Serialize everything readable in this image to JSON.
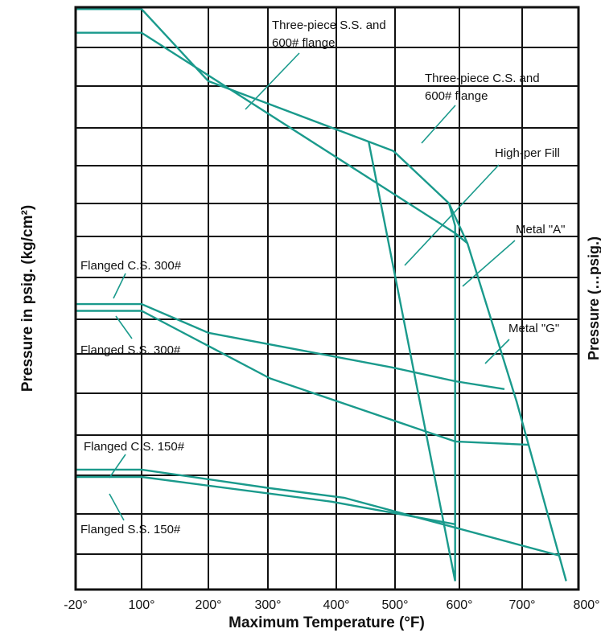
{
  "chart_data": {
    "type": "line",
    "xlabel": "Maximum Temperature (°F)",
    "ylabel": "Pressure in psig. (kg/cm²)",
    "right_axis_partial_label": "Pressure (…psig.)",
    "xlim": [
      -20,
      800
    ],
    "x_ticks": [
      "-20°",
      "100°",
      "200°",
      "300°",
      "400°",
      "500°",
      "600°",
      "700°",
      "800°"
    ],
    "y_ticks": [],
    "grid": true,
    "legend": "none — series identified by annotation labels with leader lines",
    "series": [
      {
        "name": "Three-piece S.S. and 600# flange",
        "points": [
          [
            -20,
            98.9
          ],
          [
            100,
            98.9
          ],
          [
            600,
            63.3
          ],
          [
            620,
            61.5
          ]
        ]
      },
      {
        "name": "Three-piece C.S. and 600# flange",
        "points": [
          [
            -20,
            103.1
          ],
          [
            100,
            103.1
          ],
          [
            200,
            90.3
          ],
          [
            500,
            77.9
          ],
          [
            590,
            68.6
          ]
        ]
      },
      {
        "name": "High-per Fill",
        "points": [
          [
            460,
            79.5
          ],
          [
            600,
            1.5
          ]
        ]
      },
      {
        "name": "Metal \"A\"",
        "points": [
          [
            590,
            68.6
          ],
          [
            600,
            64.6
          ],
          [
            600,
            1.5
          ]
        ]
      },
      {
        "name": "Metal \"G\"",
        "points": [
          [
            590,
            68.6
          ],
          [
            620,
            61.5
          ],
          [
            700,
            33.3
          ],
          [
            780,
            1.5
          ]
        ]
      },
      {
        "name": "Flanged C.S. 300#",
        "points": [
          [
            -20,
            50.7
          ],
          [
            100,
            50.7
          ],
          [
            200,
            45.6
          ],
          [
            500,
            39.4
          ],
          [
            600,
            37.0
          ],
          [
            680,
            35.6
          ]
        ]
      },
      {
        "name": "Flanged S.S. 300#",
        "points": [
          [
            -20,
            49.5
          ],
          [
            100,
            49.5
          ],
          [
            300,
            37.5
          ],
          [
            600,
            26.3
          ],
          [
            720,
            25.7
          ]
        ]
      },
      {
        "name": "Flanged C.S. 150#",
        "points": [
          [
            -20,
            21.3
          ],
          [
            100,
            21.3
          ],
          [
            300,
            18.0
          ],
          [
            420,
            16.3
          ],
          [
            770,
            6.0
          ]
        ]
      },
      {
        "name": "Flanged S.S. 150#",
        "points": [
          [
            -20,
            20.0
          ],
          [
            100,
            20.0
          ],
          [
            400,
            15.6
          ],
          [
            600,
            11.6
          ]
        ]
      }
    ],
    "annotations": [
      {
        "lines": [
          "Three-piece S.S. and",
          "600# flange"
        ]
      },
      {
        "lines": [
          "Three-piece C.S. and",
          "600# flange"
        ]
      },
      {
        "lines": [
          "High-per Fill"
        ]
      },
      {
        "lines": [
          "Metal \"A\""
        ]
      },
      {
        "lines": [
          "Metal \"G\""
        ]
      },
      {
        "lines": [
          "Flanged C.S. 300#"
        ]
      },
      {
        "lines": [
          "Flanged S.S. 300#"
        ]
      },
      {
        "lines": [
          "Flanged C.S. 150#"
        ]
      },
      {
        "lines": [
          "Flanged S.S. 150#"
        ]
      }
    ],
    "colors": {
      "series": "#1a9a8c",
      "grid": "#111111",
      "text": "#111111"
    }
  }
}
